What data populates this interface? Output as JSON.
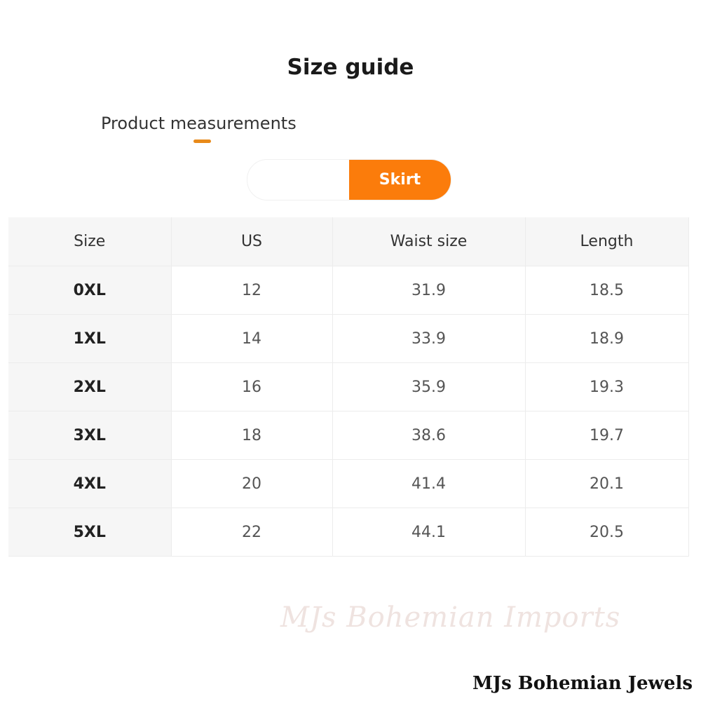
{
  "header": {
    "title": "Size guide"
  },
  "tabs": [
    {
      "label": "Product measurements",
      "active": true
    }
  ],
  "toggle": {
    "options": [
      "",
      "Skirt"
    ],
    "selected": "Skirt",
    "accent": "#fb7c0b"
  },
  "table": {
    "columns": [
      "Size",
      "US",
      "Waist size",
      "Length"
    ],
    "rows": [
      [
        "0XL",
        "12",
        "31.9",
        "18.5"
      ],
      [
        "1XL",
        "14",
        "33.9",
        "18.9"
      ],
      [
        "2XL",
        "16",
        "35.9",
        "19.3"
      ],
      [
        "3XL",
        "18",
        "38.6",
        "19.7"
      ],
      [
        "4XL",
        "20",
        "41.4",
        "20.1"
      ],
      [
        "5XL",
        "22",
        "44.1",
        "20.5"
      ]
    ]
  },
  "watermark": "MJs Bohemian Imports",
  "brand": "MJs Bohemian Jewels"
}
